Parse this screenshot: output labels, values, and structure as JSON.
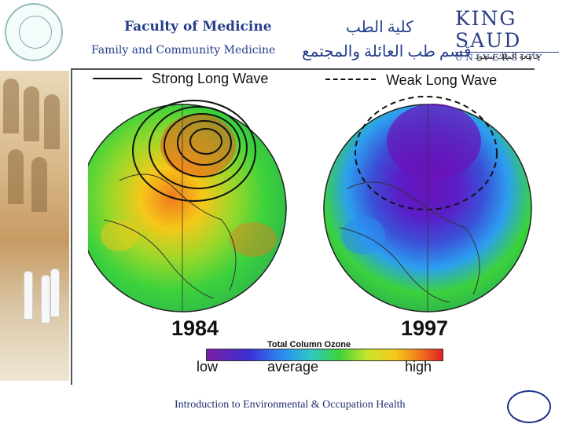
{
  "header": {
    "faculty_title": "Faculty of Medicine",
    "department": "Family and Community Medicine",
    "arabic_faculty": "كلية الطب",
    "arabic_department": "قسم طب العائلة والمجتمع",
    "university_logo_top": "KING SAUD",
    "university_logo_bottom": "UNIVERSITY",
    "university_arabic": "جامعة الملك سعود"
  },
  "figure": {
    "legend_solid_label": "Strong Long Wave",
    "legend_dashed_label": "Weak Long Wave",
    "year_left": "1984",
    "year_right": "1997",
    "scale_title": "Total Column Ozone",
    "scale_low": "low",
    "scale_average": "average",
    "scale_high": "high"
  },
  "footer": {
    "course_title": "Introduction to Environmental & Occupation Health"
  },
  "colors": {
    "brand_blue": "#243e8a",
    "ozone_low": "#7a1ea0",
    "ozone_average": "#3cd23c",
    "ozone_high": "#e02020"
  }
}
